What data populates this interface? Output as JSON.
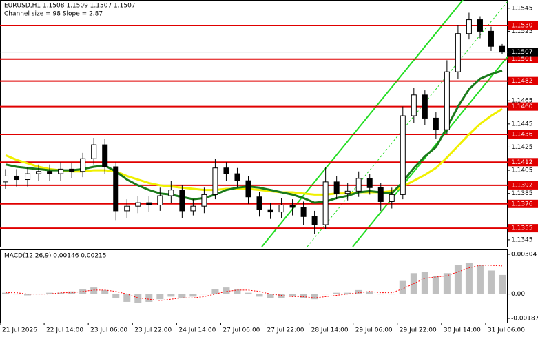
{
  "chart_data": [
    {
      "type": "candlestick",
      "title": "EURUSD,H1  1.1508 1.1509 1.1507 1.1507",
      "subtitle": "Channel size = 98 Slope = 2.87",
      "categories": [
        "21 Jul 2026",
        null,
        null,
        null,
        "22 Jul 14:00",
        null,
        null,
        null,
        "23 Jul 06:00",
        null,
        null,
        null,
        "23 Jul 22:00",
        null,
        null,
        null,
        "24 Jul 14:00",
        null,
        null,
        null,
        "27 Jul 06:00",
        null,
        null,
        null,
        "27 Jul 22:00",
        null,
        null,
        null,
        "28 Jul 14:00",
        null,
        null,
        null,
        "29 Jul 06:00",
        null,
        null,
        null,
        "29 Jul 22:00",
        null,
        null,
        null,
        "30 Jul 14:00",
        null,
        null,
        null,
        "31 Jul 06:00",
        null
      ],
      "open": [
        1.1395,
        1.14,
        1.1397,
        1.1402,
        1.1404,
        1.1402,
        1.1406,
        1.1404,
        1.1415,
        1.1427,
        1.1408,
        1.137,
        1.1374,
        1.1377,
        1.1375,
        1.1383,
        1.1388,
        1.137,
        1.1374,
        1.1384,
        1.1407,
        1.1402,
        1.1396,
        1.1382,
        1.1371,
        1.1369,
        1.1375,
        1.1373,
        1.1365,
        1.1358,
        1.1395,
        1.1385,
        1.1387,
        1.1398,
        1.139,
        1.1378,
        1.1384,
        1.1452,
        1.147,
        1.145,
        1.144,
        1.149,
        1.1523,
        1.1535,
        1.1525,
        1.1512
      ],
      "high": [
        1.1406,
        1.1406,
        1.1408,
        1.141,
        1.141,
        1.1412,
        1.1411,
        1.142,
        1.1433,
        1.1432,
        1.1412,
        1.138,
        1.1383,
        1.1383,
        1.139,
        1.1396,
        1.1392,
        1.138,
        1.139,
        1.1415,
        1.1412,
        1.1407,
        1.14,
        1.1386,
        1.1377,
        1.1381,
        1.138,
        1.1378,
        1.137,
        1.1408,
        1.14,
        1.1394,
        1.1404,
        1.1402,
        1.1394,
        1.139,
        1.146,
        1.1476,
        1.1474,
        1.1455,
        1.15,
        1.153,
        1.1541,
        1.1538,
        1.1529,
        1.1514
      ],
      "low": [
        1.1389,
        1.1391,
        1.1391,
        1.1396,
        1.1396,
        1.1396,
        1.1398,
        1.1399,
        1.141,
        1.1402,
        1.1362,
        1.1364,
        1.1368,
        1.1369,
        1.137,
        1.1377,
        1.1364,
        1.1366,
        1.1368,
        1.138,
        1.1396,
        1.139,
        1.1376,
        1.1365,
        1.1363,
        1.1364,
        1.1366,
        1.1358,
        1.135,
        1.1354,
        1.138,
        1.1379,
        1.1382,
        1.1384,
        1.137,
        1.1372,
        1.138,
        1.1446,
        1.1444,
        1.1432,
        1.1436,
        1.1484,
        1.1518,
        1.1519,
        1.1508,
        1.1505
      ],
      "close": [
        1.14,
        1.1397,
        1.1402,
        1.1404,
        1.1402,
        1.1406,
        1.1404,
        1.1415,
        1.1427,
        1.1408,
        1.137,
        1.1374,
        1.1377,
        1.1375,
        1.1383,
        1.1388,
        1.137,
        1.1374,
        1.1384,
        1.1407,
        1.1402,
        1.1396,
        1.1382,
        1.1371,
        1.1369,
        1.1375,
        1.1373,
        1.1365,
        1.1358,
        1.1395,
        1.1385,
        1.1387,
        1.1398,
        1.139,
        1.1378,
        1.1384,
        1.1452,
        1.147,
        1.145,
        1.144,
        1.149,
        1.1523,
        1.1535,
        1.1525,
        1.1512,
        1.1507
      ],
      "moving_averages": [
        {
          "color": "#f0f000",
          "values": [
            1.1418,
            1.1414,
            1.1411,
            1.1408,
            1.1406,
            1.1405,
            1.1404,
            1.1404,
            1.1405,
            1.1405,
            1.1404,
            1.14,
            1.1397,
            1.1394,
            1.1392,
            1.1391,
            1.139,
            1.1389,
            1.1388,
            1.1388,
            1.1389,
            1.1389,
            1.1389,
            1.1388,
            1.1387,
            1.1386,
            1.1386,
            1.1385,
            1.1384,
            1.1384,
            1.1385,
            1.1385,
            1.1386,
            1.1386,
            1.1386,
            1.1387,
            1.1391,
            1.1396,
            1.1401,
            1.1407,
            1.1416,
            1.1426,
            1.1436,
            1.1445,
            1.1452,
            1.1458
          ]
        },
        {
          "color": "#1a7a1a",
          "values": [
            1.141,
            1.1408,
            1.1407,
            1.1406,
            1.1405,
            1.1405,
            1.1405,
            1.1406,
            1.1408,
            1.1409,
            1.1404,
            1.1397,
            1.1392,
            1.1388,
            1.1385,
            1.1384,
            1.1382,
            1.138,
            1.1381,
            1.1384,
            1.1388,
            1.139,
            1.1391,
            1.139,
            1.1388,
            1.1386,
            1.1384,
            1.1381,
            1.1377,
            1.1378,
            1.1381,
            1.1383,
            1.1386,
            1.1387,
            1.1386,
            1.1385,
            1.1395,
            1.1407,
            1.1417,
            1.1425,
            1.1442,
            1.146,
            1.1475,
            1.1484,
            1.1488,
            1.1491
          ]
        }
      ],
      "levels": [
        {
          "value": 1.153,
          "label": "1.1530"
        },
        1.1501,
        1.1482,
        {
          "value": 1.146,
          "label": "1.1460"
        },
        1.1436,
        1.1412,
        1.1392,
        1.1376,
        1.1355
      ],
      "level_color": "#e00000",
      "last_price": 1.1507,
      "ylim": [
        1.1339,
        1.1552
      ],
      "yticks": [
        1.1545,
        1.1525,
        1.1465,
        1.1445,
        1.1425,
        1.1405,
        1.1385,
        1.1345
      ]
    },
    {
      "type": "bar",
      "title": "MACD(12,26,9) 0.00146 0.00215",
      "color": "#c0c0c0",
      "values": [
        0.0001,
        0,
        -0.0001,
        0,
        0.0001,
        0.0001,
        0.0002,
        0.0004,
        0.0005,
        0.0003,
        -0.0003,
        -0.0006,
        -0.0007,
        -0.0006,
        -0.0004,
        -0.0002,
        -0.0003,
        -0.0002,
        0,
        0.0004,
        0.0005,
        0.0004,
        0.0001,
        -0.0002,
        -0.0003,
        -0.0003,
        -0.0002,
        -0.0003,
        -0.0004,
        0,
        0.0001,
        0.0001,
        0.0003,
        0.0002,
        0,
        0,
        0.001,
        0.0016,
        0.0017,
        0.0014,
        0.0016,
        0.0022,
        0.0024,
        0.0022,
        0.0018,
        0.00146
      ],
      "signal": {
        "color": "#ff0000",
        "values": [
          0.0001,
          0.0001,
          0,
          0,
          0,
          0.0001,
          0.0001,
          0.0002,
          0.0003,
          0.0003,
          0.0002,
          0,
          -0.0003,
          -0.0004,
          -0.0005,
          -0.0004,
          -0.0003,
          -0.0003,
          -0.0002,
          0,
          0.0002,
          0.0003,
          0.0003,
          0.0002,
          0,
          -0.0001,
          -0.0002,
          -0.0002,
          -0.0003,
          -0.0002,
          -0.0001,
          0,
          0.0001,
          0.0002,
          0.0001,
          0.0001,
          0.0004,
          0.0008,
          0.0012,
          0.0013,
          0.0014,
          0.0017,
          0.002,
          0.0022,
          0.0022,
          0.00215
        ]
      },
      "ylim": [
        -0.00187,
        0.00304
      ],
      "yticks": [
        0.00304,
        {
          "value": 0,
          "label": "0.00"
        },
        -0.00187
      ]
    }
  ]
}
